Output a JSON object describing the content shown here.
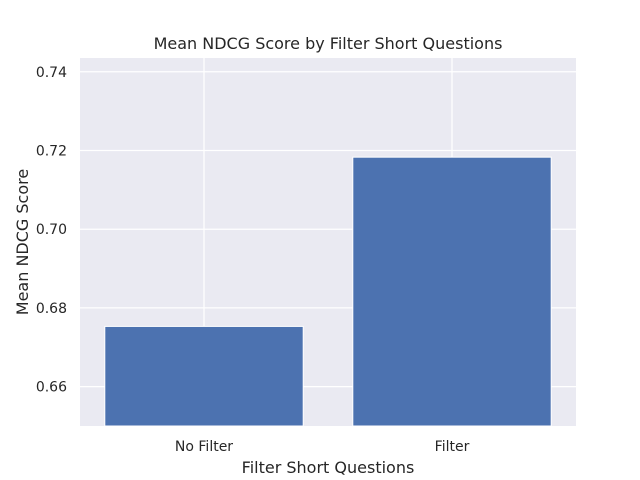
{
  "chart_data": {
    "type": "bar",
    "title": "Mean NDCG Score by Filter Short Questions",
    "xlabel": "Filter Short Questions",
    "ylabel": "Mean NDCG Score",
    "categories": [
      "No Filter",
      "Filter"
    ],
    "values": [
      0.6753,
      0.7183
    ],
    "ylim": [
      0.65,
      0.7435
    ],
    "yticks": [
      0.66,
      0.68,
      0.7,
      0.72,
      0.74
    ],
    "ytick_labels": [
      "0.66",
      "0.68",
      "0.70",
      "0.72",
      "0.74"
    ],
    "grid": true,
    "bar_color": "#4c72b0",
    "plot_background": "#eaeaf2"
  }
}
